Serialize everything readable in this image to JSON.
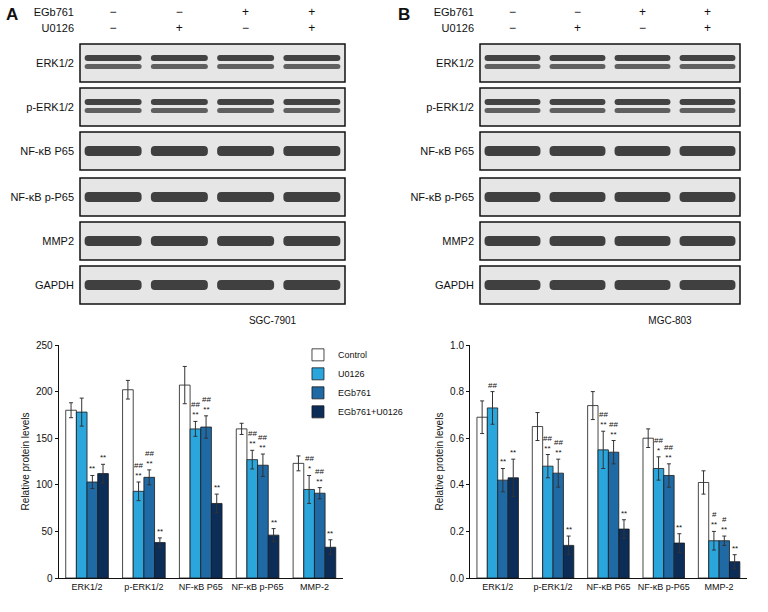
{
  "panels": [
    {
      "label": "A",
      "cell_line": "SGC-7901",
      "treatments": [
        {
          "name": "EGb761",
          "signs": [
            "−",
            "−",
            "+",
            "+"
          ]
        },
        {
          "name": "U0126",
          "signs": [
            "−",
            "+",
            "−",
            "+"
          ]
        }
      ],
      "rows": [
        "ERK1/2",
        "p-ERK1/2",
        "NF-κB P65",
        "NF-κB p-P65",
        "MMP2",
        "GAPDH"
      ]
    },
    {
      "label": "B",
      "cell_line": "MGC-803",
      "treatments": [
        {
          "name": "EGb761",
          "signs": [
            "−",
            "−",
            "+",
            "+"
          ]
        },
        {
          "name": "U0126",
          "signs": [
            "−",
            "+",
            "−",
            "+"
          ]
        }
      ],
      "rows": [
        "ERK1/2",
        "p-ERK1/2",
        "NF-κB P65",
        "NF-κB p-P65",
        "MMP2",
        "GAPDH"
      ]
    }
  ],
  "chart_data": [
    {
      "type": "bar",
      "y_label": "Relative protein levels",
      "categories": [
        "ERK1/2",
        "p-ERK1/2",
        "NF-κB P65",
        "NF-κB p-P65",
        "MMP-2"
      ],
      "ylim": [
        0,
        250
      ],
      "yticks": [
        0,
        50,
        100,
        150,
        200,
        250
      ],
      "legend": "top right",
      "series": [
        {
          "name": "Control",
          "color": "#ffffff",
          "values": [
            180,
            202,
            207,
            160,
            123
          ],
          "errors": [
            8,
            10,
            20,
            6,
            8
          ]
        },
        {
          "name": "U0126",
          "color": "#2ba6dd",
          "values": [
            178,
            93,
            160,
            127,
            95
          ],
          "errors": [
            15,
            10,
            8,
            10,
            15
          ],
          "marks": [
            [],
            [
              "##",
              "**"
            ],
            [
              "##",
              "**"
            ],
            [
              "##",
              "**"
            ],
            [
              "##",
              "*"
            ]
          ]
        },
        {
          "name": "EGb761",
          "color": "#1f6aa5",
          "values": [
            103,
            108,
            162,
            121,
            91
          ],
          "errors": [
            7,
            8,
            12,
            12,
            6
          ],
          "marks": [
            [
              "**"
            ],
            [
              "##",
              "**"
            ],
            [
              "##",
              "**"
            ],
            [
              "##",
              "**"
            ],
            [
              "##",
              "**"
            ]
          ]
        },
        {
          "name": "EGb761+U0126",
          "color": "#0c2d57",
          "values": [
            112,
            38,
            80,
            46,
            33
          ],
          "errors": [
            10,
            5,
            10,
            7,
            8
          ],
          "marks": [
            [
              "**"
            ],
            [
              "**"
            ],
            [
              "**"
            ],
            [
              "**"
            ],
            [
              "**"
            ]
          ]
        }
      ]
    },
    {
      "type": "bar",
      "y_label": "Relative protein levels",
      "categories": [
        "ERK1/2",
        "p-ERK1/2",
        "NF-κB P65",
        "NF-κB p-P65",
        "MMP-2"
      ],
      "ylim": [
        0,
        1
      ],
      "yticks": [
        {
          "value": 0,
          "label": "0.0"
        },
        0.2,
        0.4,
        0.6,
        0.8,
        {
          "value": 1,
          "label": "1.0"
        }
      ],
      "series": [
        {
          "name": "Control",
          "color": "#ffffff",
          "values": [
            0.69,
            0.65,
            0.74,
            0.6,
            0.41
          ],
          "errors": [
            0.07,
            0.06,
            0.06,
            0.04,
            0.05
          ]
        },
        {
          "name": "U0126",
          "color": "#2ba6dd",
          "values": [
            0.73,
            0.48,
            0.55,
            0.47,
            0.16
          ],
          "errors": [
            0.07,
            0.05,
            0.08,
            0.05,
            0.04
          ],
          "marks": [
            [
              "##"
            ],
            [
              "##",
              "**"
            ],
            [
              "##",
              "**"
            ],
            [
              "##",
              "*"
            ],
            [
              "#",
              "**"
            ]
          ]
        },
        {
          "name": "EGb761",
          "color": "#1f6aa5",
          "values": [
            0.42,
            0.45,
            0.54,
            0.44,
            0.16
          ],
          "errors": [
            0.05,
            0.06,
            0.05,
            0.05,
            0.02
          ],
          "marks": [
            [
              "**"
            ],
            [
              "##",
              "**"
            ],
            [
              "##",
              "**"
            ],
            [
              "##",
              "**"
            ],
            [
              "#",
              "**"
            ]
          ]
        },
        {
          "name": "EGb761+U0126",
          "color": "#0c2d57",
          "values": [
            0.43,
            0.14,
            0.21,
            0.15,
            0.07
          ],
          "errors": [
            0.08,
            0.04,
            0.04,
            0.04,
            0.03
          ],
          "marks": [
            [
              "**"
            ],
            [
              "**"
            ],
            [
              "**"
            ],
            [
              "**"
            ],
            [
              "**"
            ]
          ]
        }
      ]
    }
  ]
}
